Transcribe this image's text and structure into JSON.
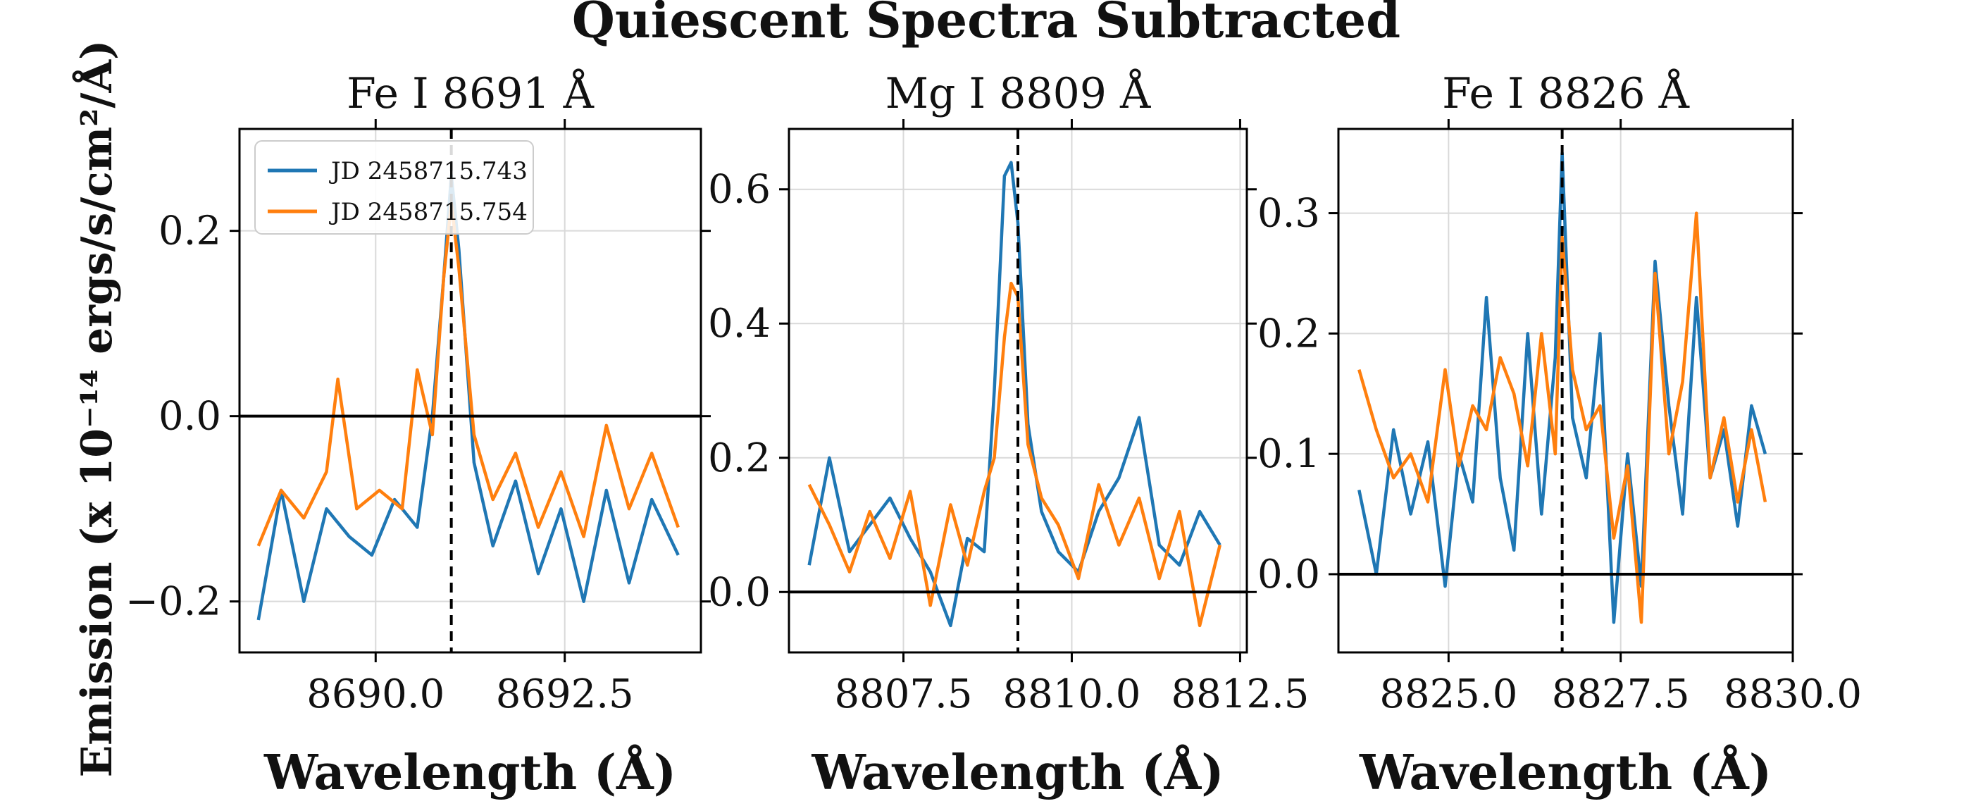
{
  "figure": {
    "suptitle": "Quiescent Spectra Subtracted",
    "ylabel": "Emission (x 10⁻¹⁴ ergs/s/cm²/Å)",
    "xlabel": "Wavelength (Å)"
  },
  "legend": {
    "placement": "upper-left of first panel",
    "entries": [
      {
        "label": "JD 2458715.743",
        "color": "#1f77b4"
      },
      {
        "label": "JD 2458715.754",
        "color": "#ff7f0e"
      }
    ]
  },
  "colors": {
    "series1": "#1f77b4",
    "series2": "#ff7f0e",
    "reference": "#000000",
    "grid": "#d9d9d9"
  },
  "chart_data": [
    {
      "type": "line",
      "title": "Fe I 8691 Å",
      "xlabel": "Wavelength (Å)",
      "xlim": [
        8688.2,
        8694.3
      ],
      "ylim": [
        -0.255,
        0.31
      ],
      "xticks": [
        8690.0,
        8692.5
      ],
      "xtick_labels": [
        "8690.0",
        "8692.5"
      ],
      "yticks": [
        -0.2,
        0.0,
        0.2
      ],
      "ytick_labels": [
        "−0.2",
        "0.0",
        "0.2"
      ],
      "line_center": 8691.0,
      "zero_line": 0.0,
      "grid": true,
      "series": [
        {
          "name": "JD 2458715.743",
          "color": "#1f77b4",
          "x": [
            8688.45,
            8688.75,
            8689.05,
            8689.35,
            8689.65,
            8689.95,
            8690.25,
            8690.55,
            8690.75,
            8690.9,
            8691.0,
            8691.1,
            8691.3,
            8691.55,
            8691.85,
            8692.15,
            8692.45,
            8692.75,
            8693.05,
            8693.35,
            8693.65,
            8694.0
          ],
          "y": [
            -0.22,
            -0.08,
            -0.2,
            -0.1,
            -0.13,
            -0.15,
            -0.09,
            -0.12,
            0.0,
            0.15,
            0.26,
            0.18,
            -0.05,
            -0.14,
            -0.07,
            -0.17,
            -0.1,
            -0.2,
            -0.08,
            -0.18,
            -0.09,
            -0.15
          ]
        },
        {
          "name": "JD 2458715.754",
          "color": "#ff7f0e",
          "x": [
            8688.45,
            8688.75,
            8689.05,
            8689.35,
            8689.5,
            8689.75,
            8690.05,
            8690.35,
            8690.55,
            8690.75,
            8690.9,
            8691.0,
            8691.1,
            8691.3,
            8691.55,
            8691.85,
            8692.15,
            8692.45,
            8692.75,
            8693.05,
            8693.35,
            8693.65,
            8694.0
          ],
          "y": [
            -0.14,
            -0.08,
            -0.11,
            -0.06,
            0.04,
            -0.1,
            -0.08,
            -0.1,
            0.05,
            -0.02,
            0.15,
            0.23,
            0.16,
            -0.02,
            -0.09,
            -0.04,
            -0.12,
            -0.06,
            -0.13,
            -0.01,
            -0.1,
            -0.04,
            -0.12
          ]
        }
      ]
    },
    {
      "type": "line",
      "title": "Mg I 8809 Å",
      "xlabel": "Wavelength (Å)",
      "xlim": [
        8805.8,
        8812.6
      ],
      "ylim": [
        -0.09,
        0.69
      ],
      "xticks": [
        8807.5,
        8810.0,
        8812.5
      ],
      "xtick_labels": [
        "8807.5",
        "8810.0",
        "8812.5"
      ],
      "yticks": [
        0.0,
        0.2,
        0.4,
        0.6
      ],
      "ytick_labels": [
        "0.0",
        "0.2",
        "0.4",
        "0.6"
      ],
      "line_center": 8809.2,
      "zero_line": 0.0,
      "grid": true,
      "series": [
        {
          "name": "JD 2458715.743",
          "color": "#1f77b4",
          "x": [
            8806.1,
            8806.4,
            8806.7,
            8807.0,
            8807.3,
            8807.6,
            8807.9,
            8808.2,
            8808.45,
            8808.7,
            8808.85,
            8809.0,
            8809.1,
            8809.2,
            8809.35,
            8809.55,
            8809.8,
            8810.1,
            8810.4,
            8810.7,
            8811.0,
            8811.3,
            8811.6,
            8811.9,
            8812.2
          ],
          "y": [
            0.04,
            0.2,
            0.06,
            0.1,
            0.14,
            0.08,
            0.03,
            -0.05,
            0.08,
            0.06,
            0.3,
            0.62,
            0.64,
            0.55,
            0.25,
            0.12,
            0.06,
            0.03,
            0.12,
            0.17,
            0.26,
            0.07,
            0.04,
            0.12,
            0.07
          ]
        },
        {
          "name": "JD 2458715.754",
          "color": "#ff7f0e",
          "x": [
            8806.1,
            8806.4,
            8806.7,
            8807.0,
            8807.3,
            8807.6,
            8807.9,
            8808.2,
            8808.45,
            8808.7,
            8808.85,
            8809.0,
            8809.1,
            8809.2,
            8809.35,
            8809.55,
            8809.8,
            8810.1,
            8810.4,
            8810.7,
            8811.0,
            8811.3,
            8811.6,
            8811.9,
            8812.2
          ],
          "y": [
            0.16,
            0.1,
            0.03,
            0.12,
            0.05,
            0.15,
            -0.02,
            0.13,
            0.04,
            0.15,
            0.2,
            0.38,
            0.46,
            0.44,
            0.22,
            0.14,
            0.1,
            0.02,
            0.16,
            0.07,
            0.14,
            0.02,
            0.12,
            -0.05,
            0.07
          ]
        }
      ]
    },
    {
      "type": "line",
      "title": "Fe I 8826 Å",
      "xlabel": "Wavelength (Å)",
      "xlim": [
        8823.4,
        8830.0
      ],
      "ylim": [
        -0.065,
        0.37
      ],
      "xticks": [
        8825.0,
        8827.5,
        8830.0
      ],
      "xtick_labels": [
        "8825.0",
        "8827.5",
        "8830.0"
      ],
      "yticks": [
        0.0,
        0.1,
        0.2,
        0.3
      ],
      "ytick_labels": [
        "0.0",
        "0.1",
        "0.2",
        "0.3"
      ],
      "line_center": 8826.65,
      "zero_line": 0.0,
      "grid": true,
      "series": [
        {
          "name": "JD 2458715.743",
          "color": "#1f77b4",
          "x": [
            8823.7,
            8823.95,
            8824.2,
            8824.45,
            8824.7,
            8824.95,
            8825.15,
            8825.35,
            8825.55,
            8825.75,
            8825.95,
            8826.15,
            8826.35,
            8826.55,
            8826.65,
            8826.8,
            8827.0,
            8827.2,
            8827.4,
            8827.6,
            8827.8,
            8828.0,
            8828.2,
            8828.4,
            8828.6,
            8828.8,
            8829.0,
            8829.2,
            8829.4,
            8829.6
          ],
          "y": [
            0.07,
            0.0,
            0.12,
            0.05,
            0.11,
            -0.01,
            0.1,
            0.06,
            0.23,
            0.08,
            0.02,
            0.2,
            0.05,
            0.18,
            0.35,
            0.13,
            0.08,
            0.2,
            -0.04,
            0.1,
            -0.01,
            0.26,
            0.14,
            0.05,
            0.23,
            0.08,
            0.12,
            0.04,
            0.14,
            0.1
          ]
        },
        {
          "name": "JD 2458715.754",
          "color": "#ff7f0e",
          "x": [
            8823.7,
            8823.95,
            8824.2,
            8824.45,
            8824.7,
            8824.95,
            8825.15,
            8825.35,
            8825.55,
            8825.75,
            8825.95,
            8826.15,
            8826.35,
            8826.55,
            8826.65,
            8826.8,
            8827.0,
            8827.2,
            8827.4,
            8827.6,
            8827.8,
            8828.0,
            8828.2,
            8828.4,
            8828.6,
            8828.8,
            8829.0,
            8829.2,
            8829.4,
            8829.6
          ],
          "y": [
            0.17,
            0.12,
            0.08,
            0.1,
            0.06,
            0.17,
            0.09,
            0.14,
            0.12,
            0.18,
            0.15,
            0.09,
            0.2,
            0.1,
            0.28,
            0.17,
            0.12,
            0.14,
            0.03,
            0.09,
            -0.04,
            0.25,
            0.1,
            0.16,
            0.3,
            0.08,
            0.13,
            0.06,
            0.12,
            0.06
          ]
        }
      ]
    }
  ]
}
